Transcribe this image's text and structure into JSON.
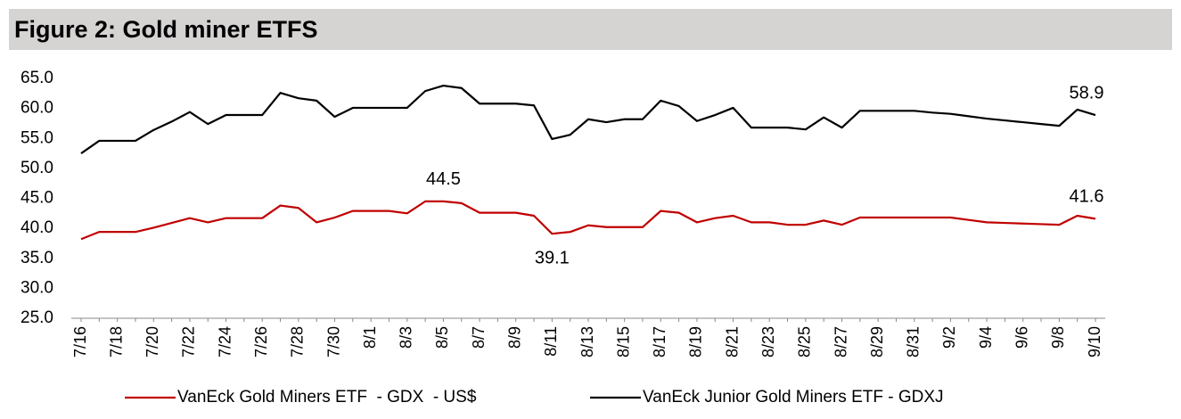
{
  "chart_data": {
    "type": "line",
    "title": "Figure 2: Gold miner ETFS",
    "categories": [
      "7/16",
      null,
      "7/18",
      null,
      "7/20",
      null,
      "7/22",
      null,
      "7/24",
      null,
      "7/26",
      null,
      "7/28",
      null,
      "7/30",
      null,
      "8/1",
      null,
      "8/3",
      null,
      "8/5",
      null,
      "8/7",
      null,
      "8/9",
      null,
      "8/11",
      null,
      "8/13",
      null,
      "8/15",
      null,
      "8/17",
      null,
      "8/19",
      null,
      "8/21",
      null,
      "8/23",
      null,
      "8/25",
      null,
      "8/27",
      null,
      "8/29",
      null,
      "8/31",
      null,
      "9/2",
      null,
      "9/4",
      null,
      "9/6",
      null,
      "9/8",
      null,
      "9/10"
    ],
    "series": [
      {
        "name": "VanEck Gold Miners ETF  - GDX  - US$",
        "color": "#c00000",
        "values": [
          38.2,
          39.4,
          39.4,
          39.4,
          40.1,
          40.9,
          41.7,
          41.0,
          41.7,
          41.7,
          41.7,
          43.8,
          43.4,
          41.0,
          41.8,
          42.9,
          42.9,
          42.9,
          42.5,
          44.5,
          44.5,
          44.2,
          42.6,
          42.6,
          42.6,
          42.1,
          39.1,
          39.4,
          40.5,
          40.2,
          40.2,
          40.2,
          42.9,
          42.6,
          41.0,
          41.7,
          42.1,
          41.0,
          41.0,
          40.6,
          40.6,
          41.3,
          40.6,
          41.8,
          41.8,
          41.8,
          41.8,
          41.8,
          41.8,
          41.4,
          41.0,
          40.9,
          40.8,
          40.7,
          40.6,
          42.1,
          41.6
        ],
        "value_labels": [
          null,
          null,
          null,
          null,
          null,
          null,
          null,
          null,
          null,
          null,
          null,
          null,
          null,
          null,
          null,
          null,
          null,
          null,
          null,
          null,
          "44.5",
          null,
          null,
          null,
          null,
          null,
          "39.1",
          null,
          null,
          null,
          null,
          null,
          null,
          null,
          null,
          null,
          null,
          null,
          null,
          null,
          null,
          null,
          null,
          null,
          null,
          null,
          null,
          null,
          null,
          null,
          null,
          null,
          null,
          null,
          null,
          null,
          "41.6"
        ]
      },
      {
        "name": "VanEck Junior Gold Miners ETF - GDXJ",
        "color": "#000000",
        "values": [
          52.5,
          54.6,
          54.6,
          54.6,
          56.4,
          57.8,
          59.4,
          57.4,
          58.9,
          58.9,
          58.9,
          62.6,
          61.7,
          61.3,
          58.6,
          60.1,
          60.1,
          60.1,
          60.1,
          62.9,
          63.8,
          63.4,
          60.8,
          60.8,
          60.8,
          60.5,
          54.9,
          55.6,
          58.2,
          57.7,
          58.2,
          58.2,
          61.3,
          60.4,
          57.9,
          58.9,
          60.1,
          56.8,
          56.8,
          56.8,
          56.5,
          58.5,
          56.8,
          59.6,
          59.6,
          59.6,
          59.6,
          59.3,
          59.1,
          58.7,
          58.3,
          58.0,
          57.7,
          57.4,
          57.1,
          59.8,
          58.9
        ],
        "value_labels": [
          null,
          null,
          null,
          null,
          null,
          null,
          null,
          null,
          null,
          null,
          null,
          null,
          null,
          null,
          null,
          null,
          null,
          null,
          null,
          null,
          null,
          null,
          null,
          null,
          null,
          null,
          null,
          null,
          null,
          null,
          null,
          null,
          null,
          null,
          null,
          null,
          null,
          null,
          null,
          null,
          null,
          null,
          null,
          null,
          null,
          null,
          null,
          null,
          null,
          null,
          null,
          null,
          null,
          null,
          null,
          null,
          "58.9"
        ]
      }
    ],
    "ylim": [
      25,
      65
    ],
    "yticks": [
      {
        "value": 25,
        "label": "25.0"
      },
      {
        "value": 30,
        "label": "30.0"
      },
      {
        "value": 35,
        "label": "35.0"
      },
      {
        "value": 40,
        "label": "40.0"
      },
      {
        "value": 45,
        "label": "45.0"
      },
      {
        "value": 50,
        "label": "50.0"
      },
      {
        "value": 55,
        "label": "55.0"
      },
      {
        "value": 60,
        "label": "60.0"
      },
      {
        "value": 65,
        "label": "65.0"
      }
    ],
    "grid": false,
    "legend": "bottom"
  }
}
